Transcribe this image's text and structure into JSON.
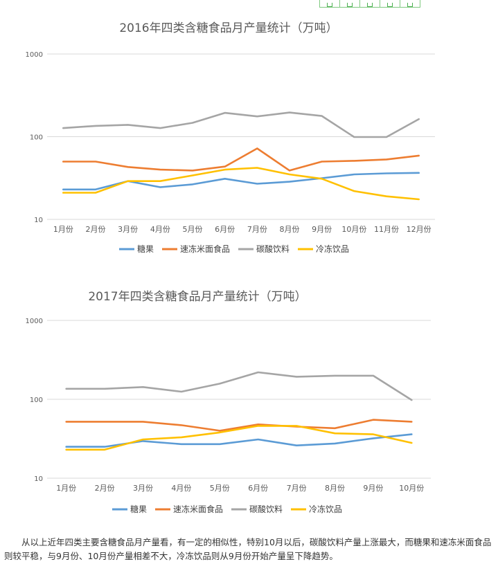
{
  "toolbar": {
    "icons": [
      "copy-icon",
      "expand-icon",
      "share-icon",
      "download-icon",
      "settings-icon"
    ]
  },
  "colors": {
    "tangguo": "#5b9bd5",
    "sudong": "#ed7d31",
    "tansuan": "#a5a5a5",
    "lengdong": "#ffc000",
    "grid": "#d9d9d9"
  },
  "chart_data": [
    {
      "type": "line",
      "title": "2016年四类含糖食品月产量统计（万吨）",
      "xlabel": "",
      "ylabel": "",
      "yscale": "log",
      "ylim": [
        10,
        1000
      ],
      "yticks": [
        "10",
        "100",
        "1000"
      ],
      "legend_position": "bottom",
      "grid": true,
      "categories": [
        "1月份",
        "2月份",
        "3月份",
        "4月份",
        "5月份",
        "6月份",
        "7月份",
        "8月份",
        "9月份",
        "10月份",
        "11月份",
        "12月份"
      ],
      "series": [
        {
          "name": "糖果",
          "values": [
            23,
            23,
            29,
            24.5,
            26.5,
            31,
            27,
            28.5,
            31.5,
            35,
            36,
            36.5
          ]
        },
        {
          "name": "速冻米面食品",
          "values": [
            50,
            50,
            43,
            40,
            39,
            43.5,
            72,
            39,
            50,
            51,
            53,
            59
          ]
        },
        {
          "name": "碳酸饮料",
          "values": [
            127,
            135,
            139,
            127,
            147,
            194,
            176,
            196,
            178,
            99,
            99,
            163
          ]
        },
        {
          "name": "冷冻饮品",
          "values": [
            21,
            21,
            29,
            29,
            34,
            40,
            42,
            35,
            31,
            22,
            19,
            17.5
          ]
        }
      ]
    },
    {
      "type": "line",
      "title": "2017年四类含糖食品月产量统计（万吨）",
      "xlabel": "",
      "ylabel": "",
      "yscale": "log",
      "ylim": [
        10,
        1000
      ],
      "yticks": [
        "10",
        "100",
        "1000"
      ],
      "legend_position": "bottom",
      "grid": true,
      "categories": [
        "1月份",
        "2月份",
        "3月份",
        "4月份",
        "5月份",
        "6月份",
        "7月份",
        "8月份",
        "9月份",
        "10月份"
      ],
      "series": [
        {
          "name": "糖果",
          "values": [
            25,
            25,
            29.5,
            27,
            27,
            31,
            26,
            27.5,
            32,
            36
          ]
        },
        {
          "name": "速冻米面食品",
          "values": [
            52,
            52,
            52,
            47,
            40,
            48,
            45,
            43,
            55,
            52
          ]
        },
        {
          "name": "碳酸饮料",
          "values": [
            136,
            136,
            143,
            125,
            158,
            220,
            193,
            199,
            199,
            98
          ]
        },
        {
          "name": "冷冻饮品",
          "values": [
            23,
            23,
            31,
            33,
            38,
            46,
            46,
            37,
            36,
            28
          ]
        }
      ]
    }
  ],
  "caption": "从以上近年四类主要含糖食品月产量看，有一定的相似性，特别10月以后，碳酸饮料产量上涨最大，而糖果和速冻米面食品则较平稳，与9月份、10月份产量相差不大，冷冻饮品则从9月份开始产量呈下降趋势。"
}
